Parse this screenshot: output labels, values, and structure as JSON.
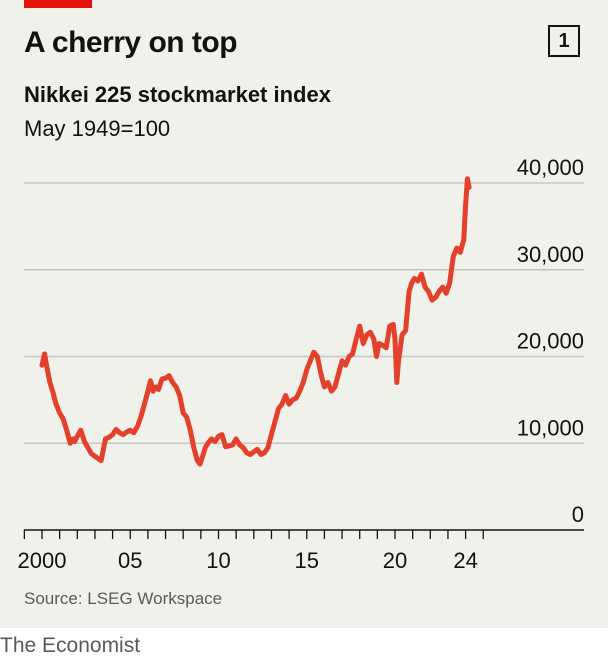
{
  "header": {
    "chart_number": "1",
    "title": "A cherry on top",
    "subtitle": "Nikkei 225 stockmarket index",
    "unit_note": "May 1949=100"
  },
  "footer": {
    "source": "Source: LSEG Workspace",
    "brand": "The Economist"
  },
  "colors": {
    "line": "#e3412c",
    "grid": "#c7c7c2",
    "axis": "#121212",
    "tag": "#e3120b"
  },
  "chart_data": {
    "type": "line",
    "title": "Nikkei 225 stockmarket index",
    "ylabel": "May 1949=100",
    "xlabel": "",
    "ylim": [
      0,
      40000
    ],
    "xlim": [
      1999.8,
      2024.3
    ],
    "grid": true,
    "y_axis_position": "right",
    "yticks": [
      {
        "value": 0,
        "label": "0"
      },
      {
        "value": 10000,
        "label": "10,000"
      },
      {
        "value": 20000,
        "label": "20,000"
      },
      {
        "value": 30000,
        "label": "30,000"
      },
      {
        "value": 40000,
        "label": "40,000"
      }
    ],
    "xticks": [
      {
        "value": 2000,
        "label": "2000"
      },
      {
        "value": 2005,
        "label": "05"
      },
      {
        "value": 2010,
        "label": "10"
      },
      {
        "value": 2015,
        "label": "15"
      },
      {
        "value": 2020,
        "label": "20"
      },
      {
        "value": 2024,
        "label": "24"
      }
    ],
    "series": [
      {
        "x": [
          2000.0,
          2000.15,
          2000.3,
          2000.45,
          2000.6,
          2000.8,
          2001.0,
          2001.2,
          2001.4,
          2001.6,
          2001.75,
          2001.85,
          2002.0,
          2002.2,
          2002.4,
          2002.6,
          2002.8,
          2003.0,
          2003.2,
          2003.35,
          2003.6,
          2003.8,
          2004.0,
          2004.2,
          2004.4,
          2004.6,
          2004.8,
          2005.0,
          2005.2,
          2005.4,
          2005.6,
          2005.8,
          2006.0,
          2006.15,
          2006.3,
          2006.45,
          2006.6,
          2006.8,
          2007.0,
          2007.2,
          2007.4,
          2007.6,
          2007.8,
          2008.0,
          2008.2,
          2008.4,
          2008.6,
          2008.8,
          2008.95,
          2009.1,
          2009.25,
          2009.4,
          2009.6,
          2009.8,
          2010.0,
          2010.2,
          2010.4,
          2010.6,
          2010.8,
          2011.0,
          2011.2,
          2011.4,
          2011.6,
          2011.8,
          2012.0,
          2012.2,
          2012.4,
          2012.6,
          2012.8,
          2013.0,
          2013.2,
          2013.4,
          2013.6,
          2013.8,
          2014.0,
          2014.2,
          2014.4,
          2014.6,
          2014.8,
          2015.0,
          2015.2,
          2015.4,
          2015.6,
          2015.8,
          2016.0,
          2016.2,
          2016.4,
          2016.6,
          2016.8,
          2017.0,
          2017.2,
          2017.4,
          2017.6,
          2017.8,
          2018.0,
          2018.2,
          2018.4,
          2018.6,
          2018.8,
          2018.95,
          2019.1,
          2019.3,
          2019.5,
          2019.7,
          2019.9,
          2020.0,
          2020.1,
          2020.2,
          2020.4,
          2020.6,
          2020.8,
          2020.95,
          2021.1,
          2021.3,
          2021.5,
          2021.7,
          2021.9,
          2022.1,
          2022.3,
          2022.5,
          2022.7,
          2022.9,
          2023.1,
          2023.3,
          2023.5,
          2023.7,
          2023.9,
          2024.0,
          2024.1,
          2024.2
        ],
        "values": [
          19000,
          20300,
          18500,
          17000,
          16000,
          14500,
          13500,
          12800,
          11500,
          10000,
          10500,
          10200,
          10800,
          11500,
          10200,
          9500,
          8800,
          8500,
          8200,
          8000,
          10500,
          10700,
          11000,
          11600,
          11200,
          11000,
          11300,
          11500,
          11200,
          11900,
          13000,
          14500,
          16000,
          17200,
          16000,
          16500,
          16200,
          17400,
          17500,
          17800,
          17000,
          16500,
          15500,
          13500,
          13000,
          11500,
          9500,
          8000,
          7600,
          8500,
          9500,
          10000,
          10500,
          10200,
          10800,
          11000,
          9600,
          9700,
          9800,
          10500,
          9800,
          9500,
          8900,
          8700,
          9000,
          9300,
          8700,
          8900,
          9500,
          11000,
          12500,
          14000,
          14500,
          15500,
          14500,
          15000,
          15200,
          16000,
          17000,
          18500,
          19500,
          20500,
          20000,
          18000,
          16500,
          17000,
          16000,
          16500,
          18000,
          19500,
          19000,
          20000,
          20300,
          22000,
          23500,
          21500,
          22500,
          22800,
          22000,
          20000,
          21500,
          21300,
          21000,
          23500,
          23700,
          22000,
          17000,
          19500,
          22500,
          23000,
          27500,
          28500,
          29000,
          28700,
          29500,
          28000,
          27500,
          26500,
          26800,
          27500,
          28000,
          27300,
          28500,
          31500,
          32500,
          32000,
          33500,
          37500,
          40500,
          39500
        ]
      }
    ]
  }
}
